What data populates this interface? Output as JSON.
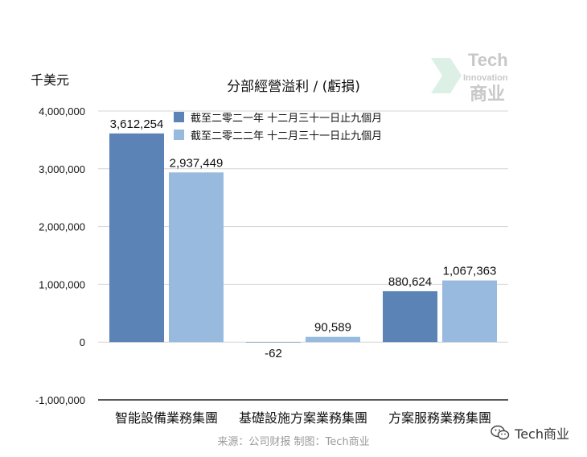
{
  "unit_label": "千美元",
  "legend_items": [
    {
      "label": "截至二零二一年 十二月三十一日止九個月",
      "color": "#5b83b6"
    },
    {
      "label": "截至二零二二年 十二月三十一日止九個月",
      "color": "#97bade"
    }
  ],
  "footer": "来源：公司财报 制图：Tech商业",
  "watermark": {
    "line1": "Tech",
    "line2": "Innovation",
    "line3": "商业"
  },
  "wechat_label": "Tech商业",
  "chart_data": {
    "type": "bar",
    "title": "分部經營溢利 / (虧損)",
    "ylabel": "千美元",
    "xlabel": "",
    "categories": [
      "智能設備業務集團",
      "基礎設施方案業務集團",
      "方案服務業務集團"
    ],
    "series": [
      {
        "name": "截至二零二一年 十二月三十一日止九個月",
        "values": [
          3612254,
          -62,
          880624
        ],
        "color": "#5b83b6"
      },
      {
        "name": "截至二零二二年 十二月三十一日止九個月",
        "values": [
          2937449,
          90589,
          1067363
        ],
        "color": "#97bade"
      }
    ],
    "data_labels": [
      [
        "3,612,254",
        "-62",
        "880,624"
      ],
      [
        "2,937,449",
        "90,589",
        "1,067,363"
      ]
    ],
    "yticks": [
      -1000000,
      0,
      1000000,
      2000000,
      3000000,
      4000000
    ],
    "ytick_labels": [
      "-1,000,000",
      "0",
      "1,000,000",
      "2,000,000",
      "3,000,000",
      "4,000,000"
    ],
    "ylim": [
      -1000000,
      4000000
    ],
    "grid": true,
    "legend_position": "top-center"
  }
}
